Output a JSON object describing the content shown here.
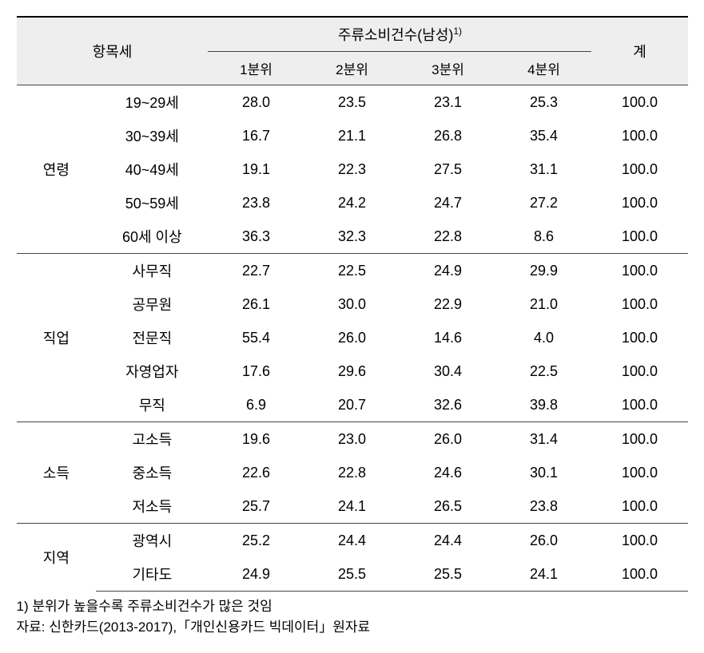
{
  "header": {
    "category_label": "항목세",
    "main_header": "주류소비건수(남성)",
    "superscript": "1)",
    "total_label": "계",
    "quartiles": [
      "1분위",
      "2분위",
      "3분위",
      "4분위"
    ]
  },
  "sections": [
    {
      "category": "연령",
      "rows": [
        {
          "label": "19~29세",
          "values": [
            "28.0",
            "23.5",
            "23.1",
            "25.3"
          ],
          "total": "100.0"
        },
        {
          "label": "30~39세",
          "values": [
            "16.7",
            "21.1",
            "26.8",
            "35.4"
          ],
          "total": "100.0"
        },
        {
          "label": "40~49세",
          "values": [
            "19.1",
            "22.3",
            "27.5",
            "31.1"
          ],
          "total": "100.0"
        },
        {
          "label": "50~59세",
          "values": [
            "23.8",
            "24.2",
            "24.7",
            "27.2"
          ],
          "total": "100.0"
        },
        {
          "label": "60세 이상",
          "values": [
            "36.3",
            "32.3",
            "22.8",
            "8.6"
          ],
          "total": "100.0"
        }
      ]
    },
    {
      "category": "직업",
      "rows": [
        {
          "label": "사무직",
          "values": [
            "22.7",
            "22.5",
            "24.9",
            "29.9"
          ],
          "total": "100.0"
        },
        {
          "label": "공무원",
          "values": [
            "26.1",
            "30.0",
            "22.9",
            "21.0"
          ],
          "total": "100.0"
        },
        {
          "label": "전문직",
          "values": [
            "55.4",
            "26.0",
            "14.6",
            "4.0"
          ],
          "total": "100.0"
        },
        {
          "label": "자영업자",
          "values": [
            "17.6",
            "29.6",
            "30.4",
            "22.5"
          ],
          "total": "100.0"
        },
        {
          "label": "무직",
          "values": [
            "6.9",
            "20.7",
            "32.6",
            "39.8"
          ],
          "total": "100.0"
        }
      ]
    },
    {
      "category": "소득",
      "rows": [
        {
          "label": "고소득",
          "values": [
            "19.6",
            "23.0",
            "26.0",
            "31.4"
          ],
          "total": "100.0"
        },
        {
          "label": "중소득",
          "values": [
            "22.6",
            "22.8",
            "24.6",
            "30.1"
          ],
          "total": "100.0"
        },
        {
          "label": "저소득",
          "values": [
            "25.7",
            "24.1",
            "26.5",
            "23.8"
          ],
          "total": "100.0"
        }
      ]
    },
    {
      "category": "지역",
      "rows": [
        {
          "label": "광역시",
          "values": [
            "25.2",
            "24.4",
            "24.4",
            "26.0"
          ],
          "total": "100.0"
        },
        {
          "label": "기타도",
          "values": [
            "24.9",
            "25.5",
            "25.5",
            "24.1"
          ],
          "total": "100.0"
        }
      ]
    }
  ],
  "footnotes": {
    "note1": "1) 분위가 높을수록 주류소비건수가 많은 것임",
    "source": "자료: 신한카드(2013-2017),「개인신용카드 빅데이터」원자료"
  }
}
